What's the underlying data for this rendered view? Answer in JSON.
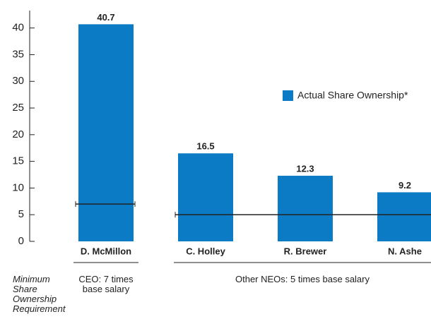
{
  "chart_data": {
    "type": "bar",
    "categories": [
      "D. McMillon",
      "C. Holley",
      "R. Brewer",
      "N. Ashe"
    ],
    "values": [
      40.7,
      16.5,
      12.3,
      9.2
    ],
    "color": "#0a7bc4",
    "ylim": [
      0,
      43
    ],
    "yticks": [
      0,
      5,
      10,
      15,
      20,
      25,
      30,
      35,
      40
    ],
    "legend": "Actual Share Ownership*",
    "requirement_title": "Minimum Share Ownership Requirement",
    "requirements": [
      {
        "label": "CEO: 7 times base salary",
        "value": 7
      },
      {
        "label": "Other NEOs: 5 times base salary",
        "value": 5
      }
    ]
  }
}
